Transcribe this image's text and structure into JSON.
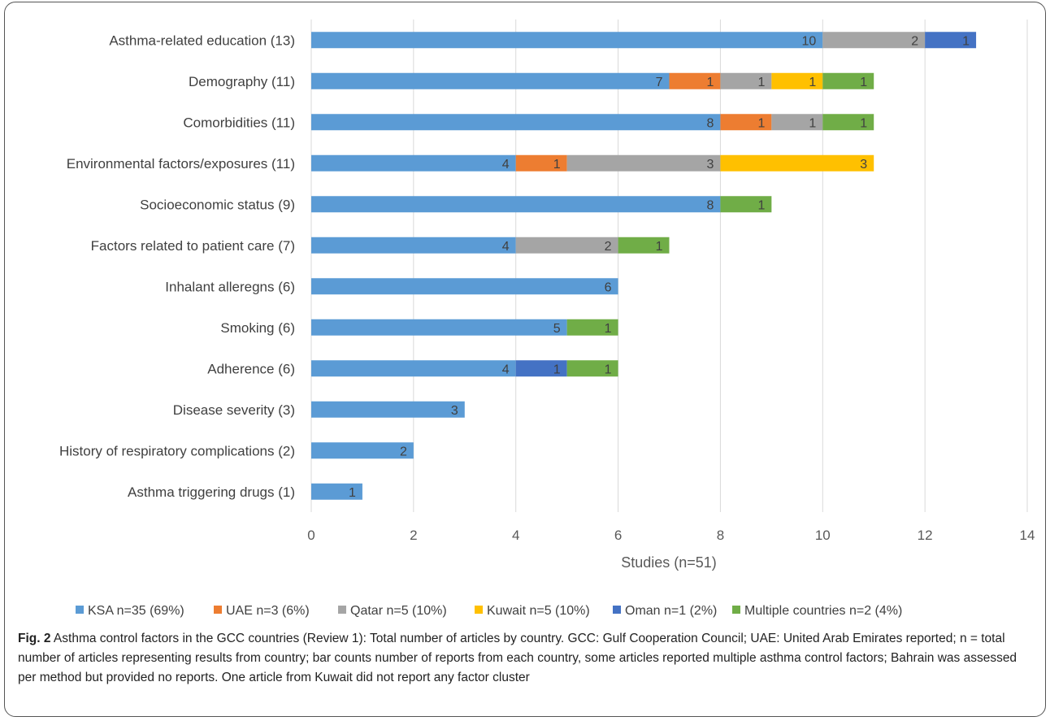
{
  "chart_data": {
    "type": "bar",
    "orientation": "horizontal",
    "stacked": true,
    "title": "",
    "xlabel": "Studies (n=51)",
    "ylabel": "",
    "xlim": [
      0,
      14
    ],
    "xticks": [
      0,
      2,
      4,
      6,
      8,
      10,
      12,
      14
    ],
    "grid": true,
    "legend_position": "bottom",
    "categories": [
      "Asthma-related education (13)",
      "Demography (11)",
      "Comorbidities (11)",
      "Environmental factors/exposures (11)",
      "Socioeconomic status (9)",
      "Factors related to patient care (7)",
      "Inhalant alleregns (6)",
      "Smoking (6)",
      "Adherence (6)",
      "Disease severity (3)",
      "History of respiratory complications (2)",
      "Asthma triggering drugs (1)"
    ],
    "series": [
      {
        "name": "KSA n=35 (69%)",
        "color": "#5B9BD5",
        "values": [
          10,
          7,
          8,
          4,
          8,
          4,
          6,
          5,
          4,
          3,
          2,
          1
        ]
      },
      {
        "name": "UAE n=3 (6%)",
        "color": "#ED7D31",
        "values": [
          0,
          1,
          1,
          1,
          0,
          0,
          0,
          0,
          0,
          0,
          0,
          0
        ]
      },
      {
        "name": "Qatar n=5 (10%)",
        "color": "#A5A5A5",
        "values": [
          2,
          1,
          1,
          3,
          0,
          2,
          0,
          0,
          0,
          0,
          0,
          0
        ]
      },
      {
        "name": "Kuwait n=5 (10%)",
        "color": "#FFC000",
        "values": [
          0,
          1,
          0,
          3,
          0,
          0,
          0,
          0,
          0,
          0,
          0,
          0
        ]
      },
      {
        "name": "Oman n=1 (2%)",
        "color": "#4472C4",
        "values": [
          1,
          0,
          0,
          0,
          0,
          0,
          0,
          0,
          1,
          0,
          0,
          0
        ]
      },
      {
        "name": "Multiple countries n=2 (4%)",
        "color": "#70AD47",
        "values": [
          0,
          1,
          1,
          0,
          1,
          1,
          0,
          1,
          1,
          0,
          0,
          0
        ]
      }
    ]
  },
  "caption": {
    "lead": "Fig. 2",
    "text": " Asthma control factors in the GCC countries (Review 1): Total number of articles by country. GCC: Gulf Cooperation Council; UAE: United Arab Emirates reported; n = total number of articles representing results from country; bar counts number of reports from each country, some articles reported multiple asthma control factors; Bahrain was assessed per method but provided no reports. One article from Kuwait did not report any factor cluster"
  }
}
